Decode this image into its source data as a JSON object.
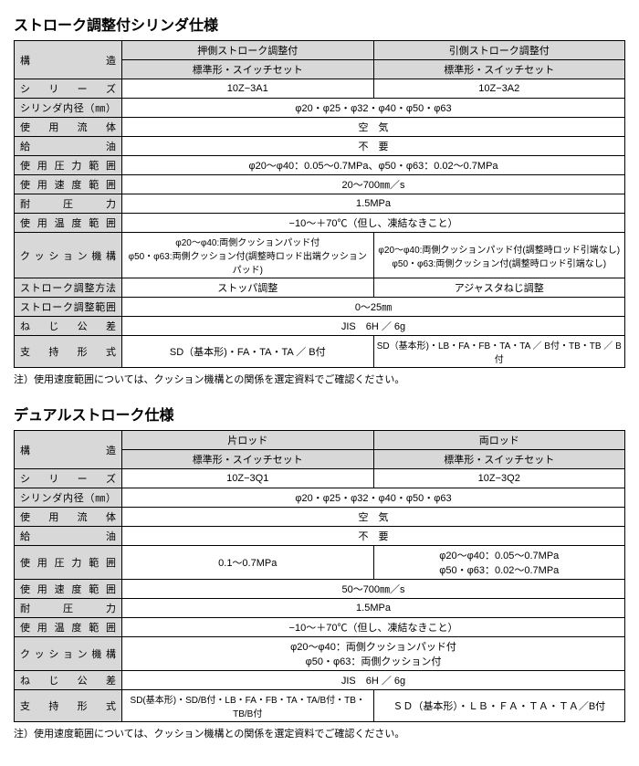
{
  "table1": {
    "title": "ストローク調整付シリンダ仕様",
    "cols": {
      "structure": "構　　　　造",
      "col1_top": "押側ストローク調整付",
      "col2_top": "引側ストローク調整付",
      "subhead": "標準形・スイッチセット"
    },
    "rows": {
      "series_label": "シ　リ　ー　ズ",
      "series_v1": "10Z−3A1",
      "series_v2": "10Z−3A2",
      "bore_label": "シリンダ内径（㎜）",
      "bore_v": "φ20・φ25・φ32・φ40・φ50・φ63",
      "fluid_label": "使　用　流　体",
      "fluid_v": "空　気",
      "lube_label": "給　　　　　油",
      "lube_v": "不　要",
      "press_label": "使 用 圧 力 範 囲",
      "press_v": "φ20〜φ40：0.05〜0.7MPa、φ50・φ63：0.02〜0.7MPa",
      "speed_label": "使 用 速 度 範 囲",
      "speed_v": "20〜700㎜／s",
      "proof_label": "耐　　圧　　力",
      "proof_v": "1.5MPa",
      "temp_label": "使 用 温 度 範 囲",
      "temp_v": "−10〜＋70℃（但し、凍結なきこと）",
      "cushion_label": "ク ッ シ ョ ン 機 構",
      "cushion_v1": "φ20〜φ40:両側クッションパッド付\nφ50・φ63:両側クッション付(調整時ロッド出端クッションパッド)",
      "cushion_v2": "φ20〜φ40:両側クッションパッド付(調整時ロッド引端なし)\nφ50・φ63:両側クッション付(調整時ロッド引端なし)",
      "adj_label": "ストローク調整方法",
      "adj_v1": "ストッパ調整",
      "adj_v2": "アジャスタねじ調整",
      "range_label": "ストローク調整範囲",
      "range_v": "0〜25㎜",
      "thread_label": "ね　じ　公　差",
      "thread_v": "JIS　6H ／ 6g",
      "mount_label": "支　持　形　式",
      "mount_v1": "SD（基本形)・FA・TA・TA ／ B付",
      "mount_v2": "SD（基本形)・LB・FA・FB・TA・TA ／ B付・TB・TB ／ B付"
    },
    "note": "注）使用速度範囲については、クッション機構との関係を選定資料でご確認ください。"
  },
  "table2": {
    "title": "デュアルストローク仕様",
    "cols": {
      "structure": "構　　　　造",
      "col1_top": "片ロッド",
      "col2_top": "両ロッド",
      "subhead": "標準形・スイッチセット"
    },
    "rows": {
      "series_label": "シ　リ　ー　ズ",
      "series_v1": "10Z−3Q1",
      "series_v2": "10Z−3Q2",
      "bore_label": "シリンダ内径（㎜）",
      "bore_v": "φ20・φ25・φ32・φ40・φ50・φ63",
      "fluid_label": "使　用　流　体",
      "fluid_v": "空　気",
      "lube_label": "給　　　　　油",
      "lube_v": "不　要",
      "press_label": "使 用 圧 力 範 囲",
      "press_v1": "0.1〜0.7MPa",
      "press_v2": "φ20〜φ40：0.05〜0.7MPa\nφ50・φ63：0.02〜0.7MPa",
      "speed_label": "使 用 速 度 範 囲",
      "speed_v": "50〜700㎜／s",
      "proof_label": "耐　　圧　　力",
      "proof_v": "1.5MPa",
      "temp_label": "使 用 温 度 範 囲",
      "temp_v": "−10〜＋70℃（但し、凍結なきこと）",
      "cushion_label": "ク ッ シ ョ ン 機 構",
      "cushion_v": "φ20〜φ40：両側クッションパッド付\nφ50・φ63：両側クッション付",
      "thread_label": "ね　じ　公　差",
      "thread_v": "JIS　6H ／ 6g",
      "mount_label": "支　持　形　式",
      "mount_v1": "SD(基本形)・SD/B付・LB・FA・FB・TA・TA/B付・TB・TB/B付",
      "mount_v2": "ＳＤ（基本形）・ＬＢ・ＦＡ・ＴＡ・ＴＡ／B付"
    },
    "note": "注）使用速度範囲については、クッション機構との関係を選定資料でご確認ください。"
  }
}
